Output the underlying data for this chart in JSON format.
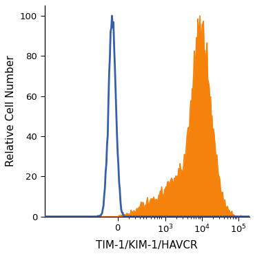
{
  "title": "",
  "xlabel": "TIM-1/KIM-1/HAVCR",
  "ylabel": "Relative Cell Number",
  "ylim": [
    0,
    105
  ],
  "yticks": [
    0,
    20,
    40,
    60,
    80,
    100
  ],
  "blue_color": "#3560a8",
  "orange_color": "#f5820a",
  "blue_linewidth": 2.0,
  "orange_linewidth": 1.2,
  "background_color": "#ffffff",
  "xlabel_fontsize": 11,
  "ylabel_fontsize": 11,
  "tick_fontsize": 9.5
}
